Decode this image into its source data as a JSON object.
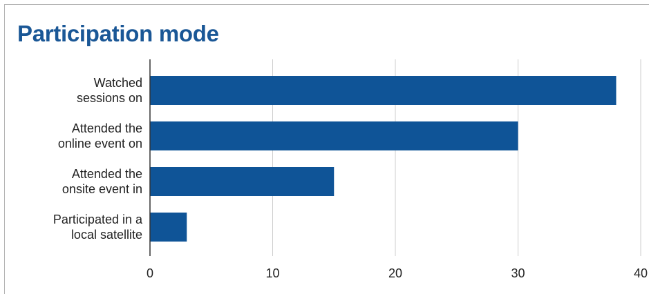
{
  "chart_data": {
    "type": "bar",
    "orientation": "horizontal",
    "title": "Participation mode",
    "categories": [
      [
        "Watched",
        "sessions on"
      ],
      [
        "Attended the",
        "online event on"
      ],
      [
        "Attended the",
        "onsite event in"
      ],
      [
        "Participated in a",
        "local satellite"
      ]
    ],
    "values": [
      38,
      30,
      15,
      3
    ],
    "xlim": [
      0,
      40
    ],
    "xticks": [
      "0",
      "10",
      "20",
      "30",
      "40"
    ],
    "grid": true,
    "bar_color": "#0f5497",
    "title_color": "#1a5796"
  }
}
